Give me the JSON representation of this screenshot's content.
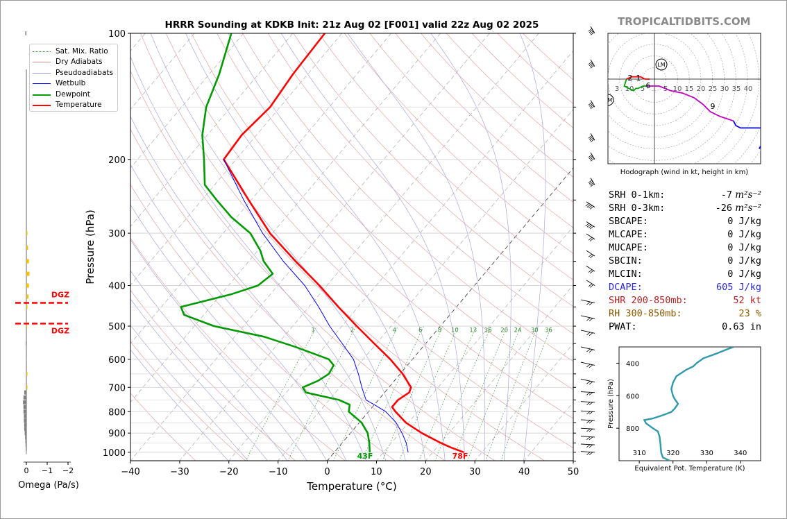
{
  "title": "HRRR Sounding at KDKB Init: 21z Aug 02 [F001] valid 22z Aug 02 2025",
  "brand": "TROPICALTIDBITS.COM",
  "legend": [
    {
      "label": "Sat. Mix. Ratio",
      "color": "#2e8b2e",
      "style": "dotted"
    },
    {
      "label": "Dry Adiabats",
      "color": "#d98c8c",
      "style": "solid"
    },
    {
      "label": "Pseudoadiabats",
      "color": "#9a9ad9",
      "style": "solid"
    },
    {
      "label": "Wetbulb",
      "color": "#0000ff",
      "style": "solid"
    },
    {
      "label": "Dewpoint",
      "color": "#00a000",
      "style": "solid"
    },
    {
      "label": "Temperature",
      "color": "#ff0000",
      "style": "solid"
    }
  ],
  "colors": {
    "temperature": "#ff0000",
    "dewpoint": "#009a00",
    "wetbulb": "#0000ff",
    "theta_e": "#2f9aa8",
    "dgz": "#ff0000",
    "omega_up": "#f2c200",
    "omega_down": "#808080"
  },
  "params": [
    {
      "label": "SRH 0-1km:",
      "value": "-7",
      "unit": "m²s⁻²",
      "color": "#000000"
    },
    {
      "label": "SRH 0-3km:",
      "value": "-26",
      "unit": "m²s⁻²",
      "color": "#000000"
    },
    {
      "label": "SBCAPE:",
      "value": "0 J/kg",
      "unit": "",
      "color": "#000000"
    },
    {
      "label": "MLCAPE:",
      "value": "0 J/kg",
      "unit": "",
      "color": "#000000"
    },
    {
      "label": "MUCAPE:",
      "value": "0 J/kg",
      "unit": "",
      "color": "#000000"
    },
    {
      "label": "SBCIN:",
      "value": "0 J/kg",
      "unit": "",
      "color": "#000000"
    },
    {
      "label": "MLCIN:",
      "value": "0 J/kg",
      "unit": "",
      "color": "#000000"
    },
    {
      "label": "DCAPE:",
      "value": "605 J/kg",
      "unit": "",
      "color": "#2b2bd6"
    },
    {
      "label": "SHR 200-850mb:",
      "value": "52 kt",
      "unit": "",
      "color": "#b22222"
    },
    {
      "label": "RH 300-850mb:",
      "value": "23 %",
      "unit": "",
      "color": "#8b5a00"
    },
    {
      "label": "PWAT:",
      "value": "0.63 in",
      "unit": "",
      "color": "#000000"
    }
  ],
  "chart_data": [
    {
      "type": "line",
      "subtype": "skew-t",
      "xlabel": "Temperature (°C)",
      "ylabel": "Pressure (hPa)",
      "x_ticks": [
        "−40",
        "−30",
        "−20",
        "−10",
        "0",
        "10",
        "20",
        "30",
        "40",
        "50"
      ],
      "y_ticks": [
        "100",
        "200",
        "300",
        "400",
        "500",
        "600",
        "700",
        "800",
        "900",
        "1000"
      ],
      "xlim": [
        -40,
        50
      ],
      "ylim": [
        1050,
        100
      ],
      "y_scale": "log",
      "mixing_ratio_labels": [
        "1",
        "2",
        "4",
        "6",
        "8",
        "10",
        "13",
        "16",
        "20",
        "24",
        "30",
        "36"
      ],
      "surface_labels": {
        "dewpoint": "43F",
        "temperature": "78F"
      },
      "series": [
        {
          "name": "Temperature",
          "points": [
            [
              1000,
              26.3
            ],
            [
              975,
              23.0
            ],
            [
              950,
              20.0
            ],
            [
              900,
              14.5
            ],
            [
              850,
              9.5
            ],
            [
              800,
              5.5
            ],
            [
              780,
              4.0
            ],
            [
              750,
              4.0
            ],
            [
              720,
              5.0
            ],
            [
              700,
              4.5
            ],
            [
              650,
              0.5
            ],
            [
              600,
              -4.5
            ],
            [
              550,
              -10.5
            ],
            [
              500,
              -17.0
            ],
            [
              450,
              -24.0
            ],
            [
              400,
              -31.5
            ],
            [
              350,
              -40.5
            ],
            [
              300,
              -50.5
            ],
            [
              250,
              -60.5
            ],
            [
              200,
              -72.5
            ],
            [
              175,
              -73.0
            ],
            [
              150,
              -72.0
            ],
            [
              125,
              -73.0
            ],
            [
              100,
              -73.5
            ]
          ]
        },
        {
          "name": "Dewpoint",
          "points": [
            [
              1000,
              7.2
            ],
            [
              950,
              5.5
            ],
            [
              900,
              3.5
            ],
            [
              850,
              0.5
            ],
            [
              800,
              -4.0
            ],
            [
              770,
              -5.0
            ],
            [
              750,
              -8.0
            ],
            [
              720,
              -16.0
            ],
            [
              700,
              -17.5
            ],
            [
              675,
              -15.5
            ],
            [
              650,
              -14.5
            ],
            [
              620,
              -15.0
            ],
            [
              600,
              -17.0
            ],
            [
              560,
              -26.0
            ],
            [
              530,
              -34.0
            ],
            [
              500,
              -46.0
            ],
            [
              470,
              -54.0
            ],
            [
              450,
              -56.0
            ],
            [
              420,
              -48.0
            ],
            [
              400,
              -44.0
            ],
            [
              375,
              -43.0
            ],
            [
              350,
              -47.0
            ],
            [
              330,
              -49.5
            ],
            [
              300,
              -54.5
            ],
            [
              275,
              -61.0
            ],
            [
              250,
              -67.0
            ],
            [
              230,
              -72.0
            ],
            [
              200,
              -76.5
            ],
            [
              175,
              -81.0
            ],
            [
              150,
              -85.0
            ],
            [
              125,
              -88.0
            ],
            [
              100,
              -92.5
            ]
          ]
        },
        {
          "name": "Wetbulb",
          "points": [
            [
              1000,
              15.0
            ],
            [
              950,
              13.0
            ],
            [
              900,
              10.5
            ],
            [
              850,
              7.5
            ],
            [
              800,
              3.5
            ],
            [
              770,
              0.0
            ],
            [
              750,
              -2.5
            ],
            [
              700,
              -5.5
            ],
            [
              650,
              -8.5
            ],
            [
              600,
              -12.0
            ],
            [
              550,
              -17.0
            ],
            [
              500,
              -22.5
            ],
            [
              450,
              -28.0
            ],
            [
              400,
              -34.5
            ],
            [
              350,
              -43.0
            ],
            [
              300,
              -52.0
            ],
            [
              250,
              -61.5
            ],
            [
              200,
              -72.5
            ]
          ]
        }
      ]
    },
    {
      "type": "line",
      "subtype": "hodograph",
      "xlabel": "Hodograph (wind in kt, height in km)",
      "ring_labels": [
        "3",
        "10",
        "5",
        "5",
        "10",
        "15",
        "20",
        "25",
        "30",
        "35",
        "40"
      ],
      "height_labels": [
        "2",
        "1",
        "6",
        "9"
      ],
      "motion_labels": [
        "LM",
        "RM"
      ],
      "series": [
        {
          "name": "0-3 km",
          "color": "#ff0000",
          "points": [
            [
              -2,
              0
            ],
            [
              -4,
              0
            ],
            [
              -6,
              1
            ],
            [
              -8,
              1
            ],
            [
              -10,
              1
            ],
            [
              -12,
              0
            ]
          ]
        },
        {
          "name": "3-6 km",
          "color": "#00a000",
          "points": [
            [
              -12,
              0
            ],
            [
              -13,
              -3
            ],
            [
              -11,
              -4
            ],
            [
              -9,
              -5
            ],
            [
              -8,
              -4
            ],
            [
              -7,
              -4
            ],
            [
              -5,
              -3
            ],
            [
              -3,
              -3
            ]
          ]
        },
        {
          "name": "6-9 km",
          "color": "#c000c0",
          "points": [
            [
              -3,
              -3
            ],
            [
              2,
              -3
            ],
            [
              7,
              -5
            ],
            [
              12,
              -6
            ],
            [
              17,
              -8
            ],
            [
              21,
              -11
            ],
            [
              24,
              -14
            ],
            [
              28,
              -16
            ],
            [
              31,
              -17
            ],
            [
              34,
              -18
            ]
          ]
        },
        {
          "name": "9-12 km",
          "color": "#0000ff",
          "points": [
            [
              34,
              -18
            ],
            [
              35,
              -20
            ],
            [
              37,
              -21
            ],
            [
              42,
              -21
            ],
            [
              47,
              -21
            ],
            [
              51,
              -21
            ],
            [
              48,
              -25
            ],
            [
              45,
              -30
            ]
          ]
        }
      ]
    },
    {
      "type": "line",
      "subtype": "theta-e",
      "xlabel": "Equivalent Pot. Temperature (K)",
      "ylabel": "Pressure (hPa)",
      "x_ticks": [
        "310",
        "320",
        "330",
        "340"
      ],
      "y_ticks": [
        "400",
        "600",
        "800"
      ],
      "xlim": [
        304,
        346
      ],
      "ylim": [
        1000,
        300
      ],
      "series": [
        {
          "name": "Theta-E",
          "points": [
            [
              1000,
              319
            ],
            [
              980,
              317
            ],
            [
              950,
              316.5
            ],
            [
              900,
              316.3
            ],
            [
              850,
              316
            ],
            [
              820,
              315.5
            ],
            [
              800,
              314
            ],
            [
              770,
              312
            ],
            [
              750,
              311.5
            ],
            [
              740,
              314
            ],
            [
              720,
              317
            ],
            [
              700,
              319.5
            ],
            [
              680,
              320.5
            ],
            [
              650,
              321.5
            ],
            [
              620,
              320.5
            ],
            [
              600,
              320
            ],
            [
              560,
              319.5
            ],
            [
              520,
              320
            ],
            [
              480,
              321
            ],
            [
              440,
              324
            ],
            [
              420,
              326
            ],
            [
              400,
              327
            ],
            [
              370,
              329
            ],
            [
              340,
              333
            ],
            [
              315,
              336
            ],
            [
              300,
              338
            ]
          ]
        }
      ]
    },
    {
      "type": "bar",
      "subtype": "omega",
      "xlabel": "Omega (Pa/s)",
      "x_ticks": [
        "0",
        "−1",
        "−2"
      ],
      "dgz_label": "DGZ",
      "dgz_hpa": [
        440,
        493
      ],
      "profile": [
        [
          100,
          0.05
        ],
        [
          150,
          0
        ],
        [
          200,
          0
        ],
        [
          250,
          0
        ],
        [
          300,
          -0.05
        ],
        [
          325,
          -0.08
        ],
        [
          350,
          -0.12
        ],
        [
          375,
          -0.15
        ],
        [
          400,
          -0.12
        ],
        [
          425,
          -0.1
        ],
        [
          450,
          -0.05
        ],
        [
          475,
          0
        ],
        [
          500,
          -0.03
        ],
        [
          550,
          0.03
        ],
        [
          600,
          0.02
        ],
        [
          650,
          -0.05
        ],
        [
          700,
          -0.05
        ],
        [
          720,
          0.1
        ],
        [
          740,
          0.14
        ],
        [
          760,
          0.16
        ],
        [
          780,
          0.14
        ],
        [
          800,
          0.14
        ],
        [
          820,
          0.12
        ],
        [
          840,
          0.12
        ],
        [
          860,
          0.1
        ],
        [
          880,
          0.1
        ],
        [
          900,
          0.08
        ],
        [
          920,
          0.06
        ],
        [
          940,
          0.05
        ],
        [
          960,
          0.04
        ],
        [
          980,
          0.03
        ],
        [
          1000,
          0.02
        ]
      ]
    }
  ]
}
